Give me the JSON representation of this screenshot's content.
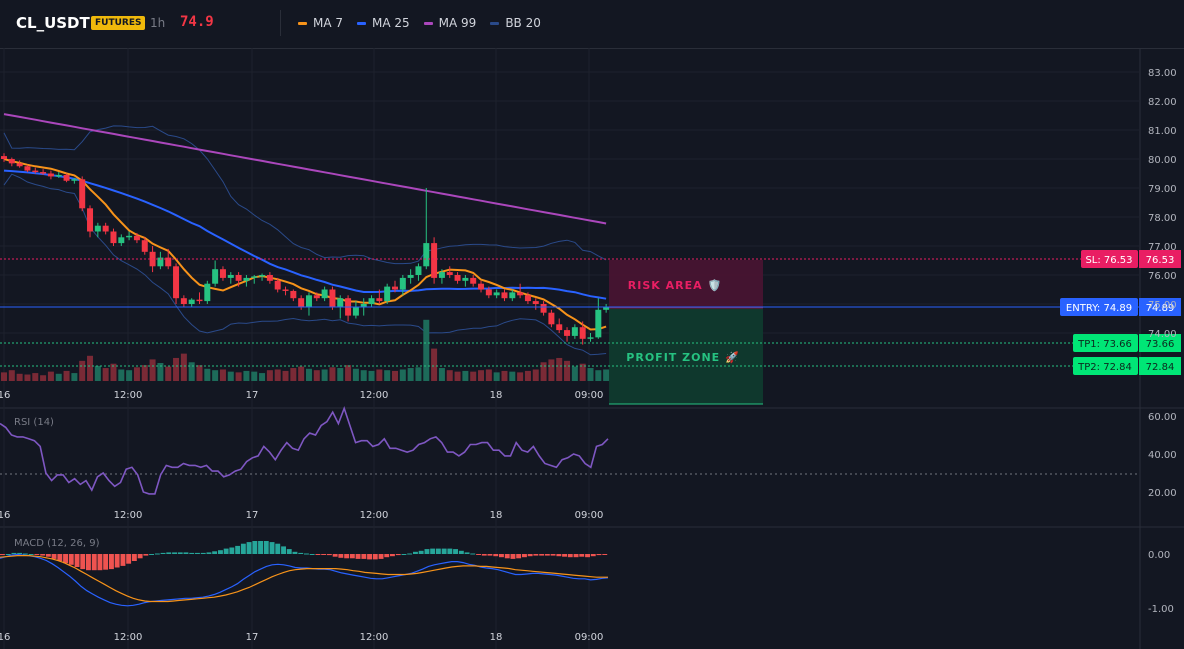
{
  "header": {
    "symbol": "CL_USDT",
    "badge": "FUTURES",
    "timeframe": "1h",
    "price": "74.9"
  },
  "legend": [
    {
      "label": "MA 7",
      "color": "#f7931a"
    },
    {
      "label": "MA 25",
      "color": "#2962ff"
    },
    {
      "label": "MA 99",
      "color": "#ab47bc"
    },
    {
      "label": "BB 20",
      "color": "#2a4a8a"
    }
  ],
  "colors": {
    "up": "#26c281",
    "down": "#f23645",
    "vol_up": "#1d6b5a",
    "vol_down": "#7a2a36",
    "ma7": "#f7931a",
    "ma25": "#2962ff",
    "ma99": "#ab47bc",
    "bb": "#2a4a8a",
    "rsi": "#7e57c2",
    "macd_line": "#2962ff",
    "signal_line": "#f7931a",
    "hist_pos": "#26a69a",
    "hist_neg": "#ef5350",
    "sl": "#e91e63",
    "entry": "#2962ff",
    "tp": "#00e676"
  },
  "price_axis": {
    "ticks": [
      "83.00",
      "82.00",
      "81.00",
      "80.00",
      "79.00",
      "78.00",
      "77.00",
      "76.00",
      "75.00",
      "74.00"
    ]
  },
  "time_axis": {
    "labels": [
      "16",
      "12:00",
      "17",
      "12:00",
      "18",
      "09:00"
    ]
  },
  "levels": {
    "sl": {
      "label": "SL: 76.53",
      "value": "76.53"
    },
    "entry": {
      "label": "ENTRY: 74.89",
      "value": "74.89"
    },
    "tp1": {
      "label": "TP1: 73.66",
      "value": "73.66"
    },
    "tp2": {
      "label": "TP2: 72.84",
      "value": "72.84"
    }
  },
  "zones": {
    "risk": "RISK AREA 🛡️",
    "profit": "PROFIT ZONE 🚀"
  },
  "rsi": {
    "title": "RSI (14)",
    "ticks": [
      "60.00",
      "40.00",
      "20.00"
    ],
    "values": [
      56,
      54,
      50,
      49,
      49,
      48,
      47,
      44,
      30,
      26,
      29,
      29,
      25,
      27,
      24,
      26,
      21,
      28,
      30,
      26,
      23,
      25,
      32,
      33,
      29,
      20,
      19,
      19,
      29,
      34,
      33,
      33,
      35,
      34,
      34,
      33,
      34,
      31,
      31,
      28,
      29,
      31,
      32,
      36,
      38,
      39,
      44,
      41,
      37,
      42,
      46,
      43,
      42,
      48,
      51,
      50,
      55,
      57,
      62,
      56,
      64,
      55,
      46,
      47,
      47,
      44,
      45,
      48,
      43,
      43,
      42,
      41,
      42,
      45,
      46,
      48,
      49,
      46,
      41,
      41,
      39,
      41,
      45,
      45,
      46,
      46,
      42,
      42,
      39,
      39,
      46,
      42,
      41,
      44,
      39,
      35,
      34,
      33,
      37,
      38,
      40,
      39,
      35,
      33,
      44,
      45,
      48
    ]
  },
  "macd": {
    "title": "MACD (12, 26, 9)",
    "ticks": [
      "0.00",
      "-1.00"
    ],
    "macd_values": [
      -0.08,
      -0.05,
      -0.02,
      -0.01,
      -0.02,
      -0.03,
      -0.05,
      -0.08,
      -0.12,
      -0.18,
      -0.25,
      -0.33,
      -0.41,
      -0.5,
      -0.6,
      -0.68,
      -0.74,
      -0.8,
      -0.85,
      -0.9,
      -0.93,
      -0.95,
      -0.96,
      -0.95,
      -0.93,
      -0.9,
      -0.88,
      -0.87,
      -0.86,
      -0.85,
      -0.84,
      -0.83,
      -0.82,
      -0.82,
      -0.81,
      -0.8,
      -0.78,
      -0.75,
      -0.71,
      -0.66,
      -0.61,
      -0.55,
      -0.47,
      -0.4,
      -0.33,
      -0.28,
      -0.23,
      -0.2,
      -0.19,
      -0.2,
      -0.22,
      -0.25,
      -0.26,
      -0.26,
      -0.27,
      -0.28,
      -0.28,
      -0.29,
      -0.32,
      -0.35,
      -0.37,
      -0.39,
      -0.41,
      -0.43,
      -0.45,
      -0.46,
      -0.46,
      -0.44,
      -0.42,
      -0.4,
      -0.38,
      -0.36,
      -0.32,
      -0.28,
      -0.23,
      -0.2,
      -0.18,
      -0.16,
      -0.14,
      -0.14,
      -0.16,
      -0.19,
      -0.21,
      -0.24,
      -0.26,
      -0.27,
      -0.29,
      -0.32,
      -0.35,
      -0.38,
      -0.38,
      -0.37,
      -0.36,
      -0.36,
      -0.37,
      -0.38,
      -0.39,
      -0.41,
      -0.43,
      -0.45,
      -0.46,
      -0.46,
      -0.48,
      -0.47,
      -0.45,
      -0.44
    ],
    "signal_values": [
      -0.06,
      -0.05,
      -0.04,
      -0.03,
      -0.03,
      -0.03,
      -0.04,
      -0.05,
      -0.07,
      -0.09,
      -0.12,
      -0.16,
      -0.21,
      -0.26,
      -0.32,
      -0.38,
      -0.44,
      -0.5,
      -0.56,
      -0.62,
      -0.68,
      -0.73,
      -0.78,
      -0.82,
      -0.85,
      -0.87,
      -0.88,
      -0.88,
      -0.88,
      -0.88,
      -0.87,
      -0.86,
      -0.85,
      -0.84,
      -0.83,
      -0.82,
      -0.81,
      -0.8,
      -0.78,
      -0.76,
      -0.73,
      -0.7,
      -0.66,
      -0.62,
      -0.57,
      -0.52,
      -0.47,
      -0.42,
      -0.38,
      -0.34,
      -0.31,
      -0.29,
      -0.28,
      -0.27,
      -0.27,
      -0.27,
      -0.27,
      -0.27,
      -0.27,
      -0.28,
      -0.29,
      -0.31,
      -0.32,
      -0.34,
      -0.35,
      -0.36,
      -0.37,
      -0.38,
      -0.38,
      -0.38,
      -0.38,
      -0.37,
      -0.36,
      -0.34,
      -0.32,
      -0.3,
      -0.28,
      -0.26,
      -0.24,
      -0.23,
      -0.22,
      -0.22,
      -0.22,
      -0.23,
      -0.23,
      -0.24,
      -0.25,
      -0.26,
      -0.27,
      -0.29,
      -0.3,
      -0.31,
      -0.32,
      -0.33,
      -0.34,
      -0.35,
      -0.36,
      -0.37,
      -0.38,
      -0.39,
      -0.4,
      -0.41,
      -0.42,
      -0.43,
      -0.43,
      -0.43
    ],
    "hist_values": [
      -0.02,
      0,
      0.02,
      0.02,
      0.01,
      0,
      -0.01,
      -0.03,
      -0.05,
      -0.09,
      -0.13,
      -0.17,
      -0.2,
      -0.24,
      -0.28,
      -0.3,
      -0.3,
      -0.3,
      -0.29,
      -0.28,
      -0.25,
      -0.22,
      -0.18,
      -0.13,
      -0.08,
      -0.03,
      0,
      0.01,
      0.02,
      0.03,
      0.03,
      0.03,
      0.03,
      0.02,
      0.02,
      0.02,
      0.03,
      0.05,
      0.07,
      0.1,
      0.12,
      0.15,
      0.19,
      0.22,
      0.24,
      0.24,
      0.24,
      0.22,
      0.19,
      0.14,
      0.09,
      0.04,
      0.02,
      0.01,
      0,
      -0.01,
      -0.01,
      -0.02,
      -0.05,
      -0.07,
      -0.08,
      -0.08,
      -0.09,
      -0.09,
      -0.1,
      -0.1,
      -0.09,
      -0.06,
      -0.04,
      -0.02,
      0,
      0.01,
      0.04,
      0.06,
      0.09,
      0.1,
      0.1,
      0.1,
      0.1,
      0.09,
      0.06,
      0.03,
      0.01,
      -0.01,
      -0.03,
      -0.03,
      -0.04,
      -0.06,
      -0.08,
      -0.09,
      -0.08,
      -0.06,
      -0.04,
      -0.03,
      -0.03,
      -0.03,
      -0.03,
      -0.04,
      -0.05,
      -0.06,
      -0.06,
      -0.05,
      -0.06,
      -0.04,
      -0.02,
      -0.01
    ]
  },
  "chart_data": {
    "type": "candlestick",
    "symbol": "CL_USDT",
    "timeframe": "1h",
    "ylim": [
      73.5,
      83.3
    ],
    "candles": [
      [
        80.1,
        80.2,
        79.9,
        80.0
      ],
      [
        80.0,
        80.05,
        79.75,
        79.85
      ],
      [
        79.85,
        79.95,
        79.7,
        79.75
      ],
      [
        79.75,
        79.8,
        79.55,
        79.6
      ],
      [
        79.6,
        79.7,
        79.5,
        79.55
      ],
      [
        79.55,
        79.65,
        79.45,
        79.5
      ],
      [
        79.5,
        79.6,
        79.3,
        79.4
      ],
      [
        79.4,
        79.55,
        79.35,
        79.45
      ],
      [
        79.45,
        79.5,
        79.2,
        79.25
      ],
      [
        79.25,
        79.35,
        79.15,
        79.3
      ],
      [
        79.3,
        79.4,
        78.2,
        78.3
      ],
      [
        78.3,
        78.4,
        77.3,
        77.5
      ],
      [
        77.5,
        77.8,
        77.3,
        77.7
      ],
      [
        77.7,
        77.8,
        77.4,
        77.5
      ],
      [
        77.5,
        77.6,
        77.0,
        77.1
      ],
      [
        77.1,
        77.4,
        77.0,
        77.3
      ],
      [
        77.3,
        77.5,
        77.2,
        77.35
      ],
      [
        77.35,
        77.45,
        77.1,
        77.2
      ],
      [
        77.2,
        77.3,
        76.7,
        76.8
      ],
      [
        76.8,
        77.0,
        76.1,
        76.3
      ],
      [
        76.3,
        76.8,
        76.2,
        76.6
      ],
      [
        76.6,
        76.9,
        76.2,
        76.3
      ],
      [
        76.3,
        76.4,
        75.0,
        75.2
      ],
      [
        75.2,
        75.3,
        74.9,
        75.0
      ],
      [
        75.0,
        75.2,
        74.9,
        75.15
      ],
      [
        75.15,
        75.4,
        75.0,
        75.1
      ],
      [
        75.1,
        75.8,
        75.0,
        75.7
      ],
      [
        75.7,
        76.5,
        75.6,
        76.2
      ],
      [
        76.2,
        76.3,
        75.8,
        75.9
      ],
      [
        75.9,
        76.1,
        75.7,
        76.0
      ],
      [
        76.0,
        76.1,
        75.6,
        75.8
      ],
      [
        75.8,
        76.0,
        75.6,
        75.9
      ],
      [
        75.9,
        76.0,
        75.7,
        75.95
      ],
      [
        75.95,
        76.05,
        75.8,
        76.0
      ],
      [
        76.0,
        76.1,
        75.7,
        75.8
      ],
      [
        75.8,
        75.9,
        75.4,
        75.5
      ],
      [
        75.5,
        75.6,
        75.3,
        75.45
      ],
      [
        75.45,
        75.5,
        75.1,
        75.2
      ],
      [
        75.2,
        75.3,
        74.8,
        74.9
      ],
      [
        74.9,
        75.4,
        74.6,
        75.3
      ],
      [
        75.3,
        75.4,
        75.1,
        75.2
      ],
      [
        75.2,
        75.6,
        75.1,
        75.5
      ],
      [
        75.5,
        75.6,
        74.8,
        74.9
      ],
      [
        74.9,
        75.3,
        74.5,
        75.2
      ],
      [
        75.2,
        75.3,
        74.4,
        74.6
      ],
      [
        74.6,
        75.1,
        74.5,
        74.9
      ],
      [
        74.9,
        75.2,
        74.6,
        75.0
      ],
      [
        75.0,
        75.3,
        74.9,
        75.2
      ],
      [
        75.2,
        75.5,
        75.0,
        75.1
      ],
      [
        75.1,
        75.7,
        75.0,
        75.6
      ],
      [
        75.6,
        75.8,
        75.4,
        75.5
      ],
      [
        75.5,
        76.0,
        75.3,
        75.9
      ],
      [
        75.9,
        76.2,
        75.7,
        76.0
      ],
      [
        76.0,
        76.4,
        75.8,
        76.3
      ],
      [
        76.3,
        79.0,
        76.2,
        77.1
      ],
      [
        77.1,
        77.3,
        75.7,
        75.9
      ],
      [
        75.9,
        76.2,
        75.7,
        76.1
      ],
      [
        76.1,
        76.3,
        75.9,
        76.0
      ],
      [
        76.0,
        76.1,
        75.7,
        75.8
      ],
      [
        75.8,
        76.0,
        75.6,
        75.9
      ],
      [
        75.9,
        76.0,
        75.6,
        75.7
      ],
      [
        75.7,
        75.8,
        75.4,
        75.5
      ],
      [
        75.5,
        75.6,
        75.2,
        75.3
      ],
      [
        75.3,
        75.5,
        75.2,
        75.4
      ],
      [
        75.4,
        75.5,
        75.1,
        75.2
      ],
      [
        75.2,
        75.5,
        75.1,
        75.4
      ],
      [
        75.4,
        75.7,
        75.2,
        75.3
      ],
      [
        75.3,
        75.4,
        75.0,
        75.1
      ],
      [
        75.1,
        75.2,
        74.8,
        75.0
      ],
      [
        75.0,
        75.1,
        74.6,
        74.7
      ],
      [
        74.7,
        74.8,
        74.2,
        74.3
      ],
      [
        74.3,
        74.5,
        74.0,
        74.1
      ],
      [
        74.1,
        74.2,
        73.7,
        73.9
      ],
      [
        73.9,
        74.3,
        73.8,
        74.2
      ],
      [
        74.2,
        74.4,
        73.6,
        73.8
      ],
      [
        73.8,
        74.0,
        73.7,
        73.85
      ],
      [
        73.85,
        75.2,
        73.8,
        74.8
      ],
      [
        74.8,
        75.0,
        74.7,
        74.9
      ]
    ],
    "volume": [
      1.2,
      1.5,
      1.0,
      0.9,
      1.1,
      0.8,
      1.3,
      1.0,
      1.4,
      1.1,
      2.8,
      3.5,
      2.1,
      1.8,
      2.4,
      1.6,
      1.5,
      1.9,
      2.2,
      3.0,
      2.5,
      2.0,
      3.2,
      3.8,
      2.6,
      2.2,
      1.7,
      1.5,
      1.6,
      1.3,
      1.2,
      1.4,
      1.3,
      1.1,
      1.5,
      1.6,
      1.4,
      1.8,
      2.0,
      1.7,
      1.5,
      1.6,
      1.9,
      1.8,
      2.2,
      1.7,
      1.5,
      1.4,
      1.6,
      1.5,
      1.4,
      1.6,
      1.8,
      1.9,
      8.5,
      4.5,
      1.8,
      1.5,
      1.3,
      1.4,
      1.3,
      1.5,
      1.6,
      1.2,
      1.4,
      1.3,
      1.2,
      1.4,
      1.6,
      2.6,
      3.0,
      3.2,
      2.8,
      2.0,
      2.4,
      1.8,
      1.5,
      1.6
    ]
  }
}
